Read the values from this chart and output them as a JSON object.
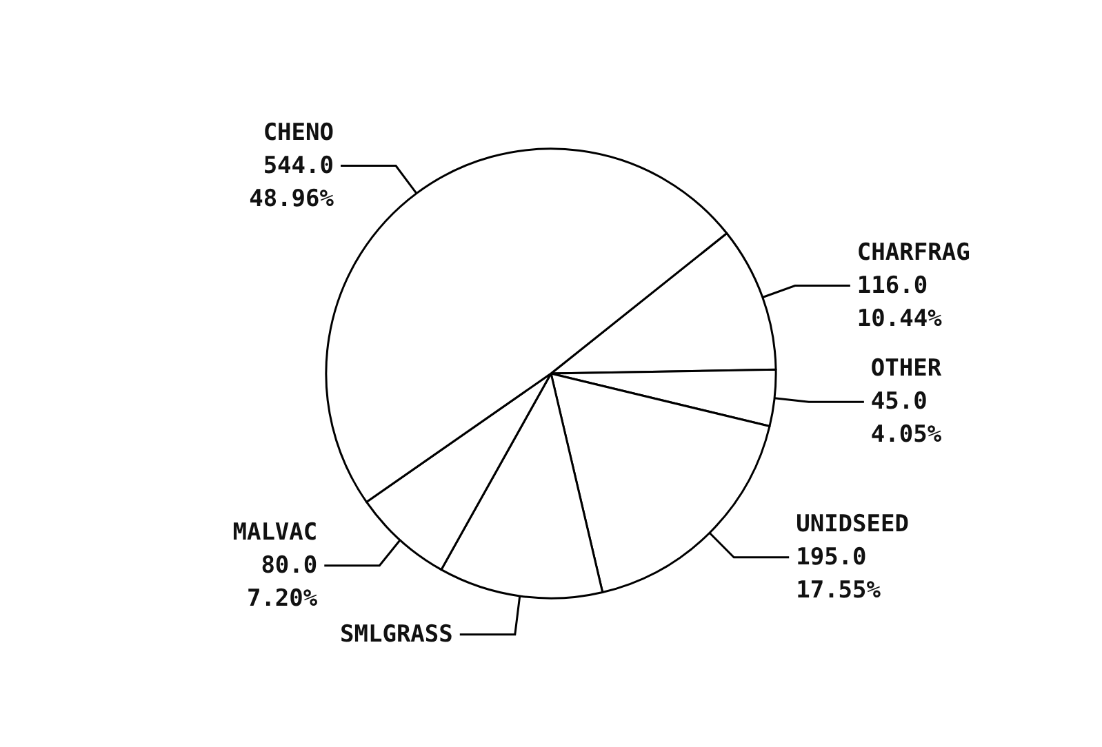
{
  "chart_data": {
    "type": "pie",
    "categories": [
      "CHARFRAG",
      "OTHER",
      "UNIDSEED",
      "SMLGRASS",
      "MALVAC",
      "CHENO"
    ],
    "values": [
      116.0,
      45.0,
      195.0,
      131.0,
      80.0,
      544.0
    ],
    "value_labels": [
      "116.0\n10.44%",
      "45.0\n4.05%",
      "195.0\n17.55%",
      null,
      "80.0\n7.20%",
      "544.0\n48.96%"
    ],
    "colors": [
      "#ffffff",
      "#ffffff",
      "#ffffff",
      "#ffffff",
      "#ffffff",
      "#ffffff"
    ],
    "legend": false
  }
}
